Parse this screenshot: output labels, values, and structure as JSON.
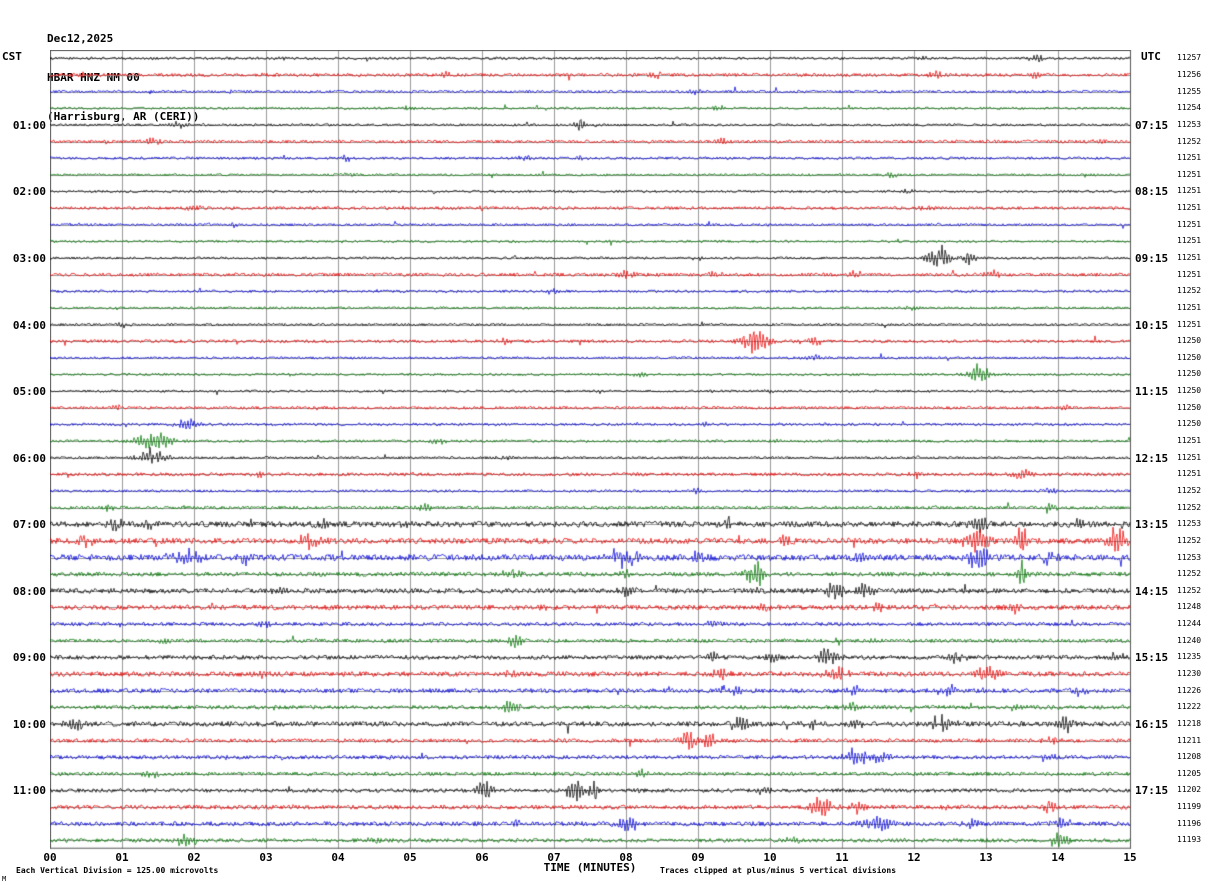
{
  "header": {
    "date": "Dec12,2025",
    "station": "HBAR HNZ NM 00",
    "location": "(Harrisburg, AR (CERI))"
  },
  "axes": {
    "left_header": "CST",
    "right_header": "UTC",
    "hour_rows": [
      {
        "row": 4,
        "cst": "01:00",
        "utc": "07:15"
      },
      {
        "row": 8,
        "cst": "02:00",
        "utc": "08:15"
      },
      {
        "row": 12,
        "cst": "03:00",
        "utc": "09:15"
      },
      {
        "row": 16,
        "cst": "04:00",
        "utc": "10:15"
      },
      {
        "row": 20,
        "cst": "05:00",
        "utc": "11:15"
      },
      {
        "row": 24,
        "cst": "06:00",
        "utc": "12:15"
      },
      {
        "row": 28,
        "cst": "07:00",
        "utc": "13:15"
      },
      {
        "row": 32,
        "cst": "08:00",
        "utc": "14:15"
      },
      {
        "row": 36,
        "cst": "09:00",
        "utc": "15:15"
      },
      {
        "row": 40,
        "cst": "10:00",
        "utc": "16:15"
      },
      {
        "row": 44,
        "cst": "11:00",
        "utc": "17:15"
      }
    ],
    "x_ticks": [
      "00",
      "01",
      "02",
      "03",
      "04",
      "05",
      "06",
      "07",
      "08",
      "09",
      "10",
      "11",
      "12",
      "13",
      "14",
      "15"
    ],
    "x_title": "TIME (MINUTES)"
  },
  "footer": {
    "left": "Each Vertical Division =  125.00 microvolts",
    "right": "Traces clipped at plus/minus 5 vertical divisions",
    "corner": "M"
  },
  "chart_data": {
    "type": "line",
    "subtype": "seismogram-helicorder",
    "xlabel": "TIME (MINUTES)",
    "x_range": [
      0,
      15
    ],
    "minutes_per_line": 15,
    "grid": true,
    "vertical_division_microvolts": 125.0,
    "clip_divisions": 5,
    "trace_colors": [
      "#000000",
      "#ee0000",
      "#0000dd",
      "#007700"
    ],
    "rows": [
      {
        "v": "11257",
        "n": 1.0,
        "e": [
          {
            "m": 3.2,
            "a": 2
          },
          {
            "m": 12.1,
            "a": 2
          },
          {
            "m": 13.7,
            "a": 2.5
          }
        ]
      },
      {
        "v": "11256",
        "n": 1.3,
        "e": [
          {
            "m": 0.4,
            "a": 2.5
          },
          {
            "m": 5.5,
            "a": 3
          },
          {
            "m": 8.4,
            "a": 2.5
          },
          {
            "m": 12.3,
            "a": 3
          },
          {
            "m": 13.7,
            "a": 3
          }
        ]
      },
      {
        "v": "11255",
        "n": 1.0,
        "e": [
          {
            "m": 2.5,
            "a": 2
          },
          {
            "m": 9.0,
            "a": 2
          }
        ]
      },
      {
        "v": "11254",
        "n": 0.9,
        "e": [
          {
            "m": 5.0,
            "a": 2
          },
          {
            "m": 9.3,
            "a": 2
          }
        ]
      },
      {
        "v": "11253",
        "n": 0.9,
        "e": [
          {
            "m": 7.35,
            "a": 7,
            "s": 0.05
          },
          {
            "m": 1.8,
            "a": 2.5
          }
        ]
      },
      {
        "v": "11252",
        "n": 1.2,
        "e": [
          {
            "m": 1.4,
            "a": 3
          },
          {
            "m": 9.3,
            "a": 2.5
          },
          {
            "m": 14.6,
            "a": 2.5
          }
        ]
      },
      {
        "v": "11251",
        "n": 1.0,
        "e": [
          {
            "m": 4.1,
            "a": 2.5
          },
          {
            "m": 6.6,
            "a": 2.5
          },
          {
            "m": 7.4,
            "a": 2
          }
        ]
      },
      {
        "v": "11251",
        "n": 0.9,
        "e": [
          {
            "m": 4.2,
            "a": 2
          },
          {
            "m": 11.7,
            "a": 2.5
          }
        ]
      },
      {
        "v": "11251",
        "n": 0.9,
        "e": [
          {
            "m": 11.9,
            "a": 2
          }
        ]
      },
      {
        "v": "11251",
        "n": 1.2,
        "e": [
          {
            "m": 2.0,
            "a": 2.5
          },
          {
            "m": 6.0,
            "a": 2
          },
          {
            "m": 12.2,
            "a": 2.5
          }
        ]
      },
      {
        "v": "11251",
        "n": 0.9,
        "e": [
          {
            "m": 2.6,
            "a": 2.5
          }
        ]
      },
      {
        "v": "11251",
        "n": 0.9,
        "e": []
      },
      {
        "v": "11251",
        "n": 0.9,
        "e": [
          {
            "m": 12.35,
            "a": 9,
            "s": 0.12
          },
          {
            "m": 12.75,
            "a": 5,
            "s": 0.08
          },
          {
            "m": 9.0,
            "a": 2
          }
        ]
      },
      {
        "v": "11251",
        "n": 1.3,
        "e": [
          {
            "m": 8.0,
            "a": 3
          },
          {
            "m": 9.2,
            "a": 3
          },
          {
            "m": 11.2,
            "a": 2.5
          },
          {
            "m": 13.1,
            "a": 4
          }
        ]
      },
      {
        "v": "11252",
        "n": 1.0,
        "e": [
          {
            "m": 7.0,
            "a": 2
          }
        ]
      },
      {
        "v": "11251",
        "n": 0.9,
        "e": [
          {
            "m": 12.0,
            "a": 2.5
          }
        ]
      },
      {
        "v": "11251",
        "n": 0.9,
        "e": [
          {
            "m": 1.0,
            "a": 2
          }
        ]
      },
      {
        "v": "11250",
        "n": 1.2,
        "e": [
          {
            "m": 9.8,
            "a": 13,
            "s": 0.13
          },
          {
            "m": 10.6,
            "a": 3.5
          },
          {
            "m": 6.3,
            "a": 2.5
          }
        ]
      },
      {
        "v": "11250",
        "n": 0.9,
        "e": [
          {
            "m": 10.6,
            "a": 2.5
          }
        ]
      },
      {
        "v": "11250",
        "n": 0.9,
        "e": [
          {
            "m": 12.9,
            "a": 6,
            "s": 0.12
          },
          {
            "m": 8.2,
            "a": 2
          }
        ]
      },
      {
        "v": "11250",
        "n": 0.9,
        "e": [
          {
            "m": 10.0,
            "a": 2
          }
        ]
      },
      {
        "v": "11250",
        "n": 1.1,
        "e": [
          {
            "m": 0.9,
            "a": 2
          },
          {
            "m": 14.1,
            "a": 3
          }
        ]
      },
      {
        "v": "11250",
        "n": 1.0,
        "e": [
          {
            "m": 1.9,
            "a": 4,
            "s": 0.12
          },
          {
            "m": 9.1,
            "a": 2
          }
        ]
      },
      {
        "v": "11251",
        "n": 1.0,
        "e": [
          {
            "m": 1.45,
            "a": 8,
            "s": 0.18
          },
          {
            "m": 5.4,
            "a": 3
          },
          {
            "m": 10.1,
            "a": 2
          }
        ]
      },
      {
        "v": "11251",
        "n": 0.9,
        "e": [
          {
            "m": 1.4,
            "a": 7,
            "s": 0.15
          },
          {
            "m": 6.3,
            "a": 2
          }
        ]
      },
      {
        "v": "11251",
        "n": 1.3,
        "e": [
          {
            "m": 13.5,
            "a": 6,
            "s": 0.1
          },
          {
            "m": 12.0,
            "a": 3
          },
          {
            "m": 2.9,
            "a": 2.5
          }
        ]
      },
      {
        "v": "11252",
        "n": 1.0,
        "e": [
          {
            "m": 9.0,
            "a": 2.5
          },
          {
            "m": 13.9,
            "a": 2.5
          }
        ]
      },
      {
        "v": "11252",
        "n": 1.2,
        "e": [
          {
            "m": 0.8,
            "a": 2.5
          },
          {
            "m": 5.2,
            "a": 2.5
          },
          {
            "m": 13.9,
            "a": 4
          }
        ]
      },
      {
        "v": "11253",
        "n": 2.2,
        "e": [
          {
            "m": 0.9,
            "a": 4
          },
          {
            "m": 1.4,
            "a": 4
          },
          {
            "m": 3.8,
            "a": 4
          },
          {
            "m": 5.0,
            "a": 3
          },
          {
            "m": 9.4,
            "a": 3.5
          },
          {
            "m": 12.9,
            "a": 7,
            "s": 0.1
          },
          {
            "m": 14.3,
            "a": 4
          }
        ]
      },
      {
        "v": "11252",
        "n": 2.2,
        "e": [
          {
            "m": 0.5,
            "a": 5
          },
          {
            "m": 3.6,
            "a": 6,
            "s": 0.15
          },
          {
            "m": 10.2,
            "a": 4
          },
          {
            "m": 12.9,
            "a": 9,
            "s": 0.1
          },
          {
            "m": 13.5,
            "a": 13,
            "s": 0.06
          },
          {
            "m": 14.8,
            "a": 11,
            "s": 0.1
          }
        ]
      },
      {
        "v": "11253",
        "n": 2.4,
        "e": [
          {
            "m": 1.9,
            "a": 6,
            "s": 0.15
          },
          {
            "m": 2.7,
            "a": 5
          },
          {
            "m": 8.0,
            "a": 7,
            "s": 0.15
          },
          {
            "m": 9.0,
            "a": 4
          },
          {
            "m": 11.3,
            "a": 4
          },
          {
            "m": 12.9,
            "a": 8,
            "s": 0.12
          },
          {
            "m": 13.9,
            "a": 6
          }
        ]
      },
      {
        "v": "11252",
        "n": 1.7,
        "e": [
          {
            "m": 6.4,
            "a": 4
          },
          {
            "m": 8.0,
            "a": 3
          },
          {
            "m": 9.8,
            "a": 10,
            "s": 0.1
          },
          {
            "m": 13.5,
            "a": 14,
            "s": 0.05
          }
        ]
      },
      {
        "v": "11252",
        "n": 1.9,
        "e": [
          {
            "m": 3.2,
            "a": 3
          },
          {
            "m": 8.0,
            "a": 4
          },
          {
            "m": 10.9,
            "a": 8,
            "s": 0.12
          },
          {
            "m": 11.3,
            "a": 6,
            "s": 0.1
          }
        ]
      },
      {
        "v": "11248",
        "n": 1.9,
        "e": [
          {
            "m": 6.9,
            "a": 3
          },
          {
            "m": 9.9,
            "a": 3
          },
          {
            "m": 11.5,
            "a": 3.5
          },
          {
            "m": 13.4,
            "a": 5
          }
        ]
      },
      {
        "v": "11244",
        "n": 1.4,
        "e": [
          {
            "m": 3.0,
            "a": 2.5
          },
          {
            "m": 9.2,
            "a": 2.5
          }
        ]
      },
      {
        "v": "11240",
        "n": 1.4,
        "e": [
          {
            "m": 6.45,
            "a": 7,
            "s": 0.08
          },
          {
            "m": 1.6,
            "a": 2.5
          },
          {
            "m": 11.4,
            "a": 2.5
          }
        ]
      },
      {
        "v": "11235",
        "n": 1.7,
        "e": [
          {
            "m": 9.2,
            "a": 4
          },
          {
            "m": 10.0,
            "a": 5
          },
          {
            "m": 10.8,
            "a": 6,
            "s": 0.12
          },
          {
            "m": 12.6,
            "a": 5
          },
          {
            "m": 14.8,
            "a": 4
          }
        ]
      },
      {
        "v": "11230",
        "n": 1.9,
        "e": [
          {
            "m": 2.9,
            "a": 3
          },
          {
            "m": 6.4,
            "a": 3
          },
          {
            "m": 9.3,
            "a": 5
          },
          {
            "m": 10.9,
            "a": 6,
            "s": 0.12
          },
          {
            "m": 13.0,
            "a": 7,
            "s": 0.12
          }
        ]
      },
      {
        "v": "11226",
        "n": 1.7,
        "e": [
          {
            "m": 9.5,
            "a": 3
          },
          {
            "m": 11.2,
            "a": 4
          },
          {
            "m": 12.5,
            "a": 4
          },
          {
            "m": 14.3,
            "a": 4
          }
        ]
      },
      {
        "v": "11222",
        "n": 1.5,
        "e": [
          {
            "m": 6.4,
            "a": 5
          },
          {
            "m": 11.1,
            "a": 4
          },
          {
            "m": 13.4,
            "a": 3
          }
        ]
      },
      {
        "v": "11218",
        "n": 1.9,
        "e": [
          {
            "m": 0.35,
            "a": 6,
            "s": 0.1
          },
          {
            "m": 9.6,
            "a": 7,
            "s": 0.1
          },
          {
            "m": 10.6,
            "a": 4
          },
          {
            "m": 11.2,
            "a": 4
          },
          {
            "m": 12.4,
            "a": 8,
            "s": 0.12
          },
          {
            "m": 14.1,
            "a": 7,
            "s": 0.08
          }
        ]
      },
      {
        "v": "11211",
        "n": 1.5,
        "e": [
          {
            "m": 8.9,
            "a": 9,
            "s": 0.1
          },
          {
            "m": 9.15,
            "a": 7,
            "s": 0.06
          },
          {
            "m": 13.9,
            "a": 3
          }
        ]
      },
      {
        "v": "11208",
        "n": 1.5,
        "e": [
          {
            "m": 11.2,
            "a": 8,
            "s": 0.12
          },
          {
            "m": 11.55,
            "a": 6,
            "s": 0.08
          },
          {
            "m": 13.9,
            "a": 3
          }
        ]
      },
      {
        "v": "11205",
        "n": 1.4,
        "e": [
          {
            "m": 1.4,
            "a": 4
          },
          {
            "m": 8.2,
            "a": 3
          }
        ]
      },
      {
        "v": "11202",
        "n": 1.5,
        "e": [
          {
            "m": 6.05,
            "a": 9,
            "s": 0.08
          },
          {
            "m": 7.3,
            "a": 10,
            "s": 0.08
          },
          {
            "m": 7.55,
            "a": 7,
            "s": 0.06
          },
          {
            "m": 9.9,
            "a": 3
          }
        ]
      },
      {
        "v": "11199",
        "n": 1.7,
        "e": [
          {
            "m": 10.7,
            "a": 8,
            "s": 0.12
          },
          {
            "m": 11.2,
            "a": 5
          },
          {
            "m": 12.4,
            "a": 3
          },
          {
            "m": 13.9,
            "a": 7,
            "s": 0.08
          }
        ]
      },
      {
        "v": "11196",
        "n": 1.7,
        "e": [
          {
            "m": 6.5,
            "a": 3
          },
          {
            "m": 8.0,
            "a": 6,
            "s": 0.12
          },
          {
            "m": 11.5,
            "a": 6,
            "s": 0.15
          },
          {
            "m": 12.8,
            "a": 4
          },
          {
            "m": 14.05,
            "a": 6,
            "s": 0.08
          }
        ]
      },
      {
        "v": "11193",
        "n": 1.5,
        "e": [
          {
            "m": 1.9,
            "a": 6,
            "s": 0.1
          },
          {
            "m": 4.5,
            "a": 2.5
          },
          {
            "m": 10.3,
            "a": 3
          },
          {
            "m": 14.0,
            "a": 6,
            "s": 0.1
          }
        ]
      }
    ]
  }
}
